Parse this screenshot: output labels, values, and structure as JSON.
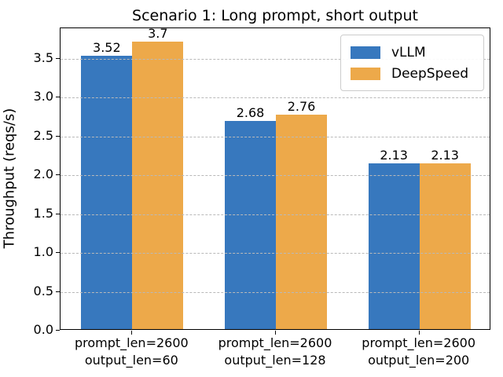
{
  "chart_data": {
    "type": "bar",
    "title": "Scenario 1: Long prompt, short output",
    "xlabel": "",
    "ylabel": "Throughput (reqs/s)",
    "ylim": [
      0,
      3.889
    ],
    "yticks": [
      "0.0",
      "0.5",
      "1.0",
      "1.5",
      "2.0",
      "2.5",
      "3.0",
      "3.5"
    ],
    "ytick_values": [
      0,
      0.5,
      1.0,
      1.5,
      2.0,
      2.5,
      3.0,
      3.5
    ],
    "grid": "horizontal dashed",
    "legend_position": "upper right",
    "categories": [
      [
        "prompt_len=2600",
        "output_len=60"
      ],
      [
        "prompt_len=2600",
        "output_len=128"
      ],
      [
        "prompt_len=2600",
        "output_len=200"
      ]
    ],
    "series": [
      {
        "name": "vLLM",
        "color": "#3778BE",
        "values": [
          3.52,
          2.68,
          2.13
        ],
        "labels": [
          "3.52",
          "2.68",
          "2.13"
        ]
      },
      {
        "name": "DeepSpeed",
        "color": "#EDA94A",
        "values": [
          3.7,
          2.76,
          2.13
        ],
        "labels": [
          "3.7",
          "2.76",
          "2.13"
        ]
      }
    ]
  },
  "colors": {
    "grid": "#B9B9B9",
    "axis": "#000000",
    "legend_border": "#CCCCCC",
    "background": "#FFFFFF"
  }
}
